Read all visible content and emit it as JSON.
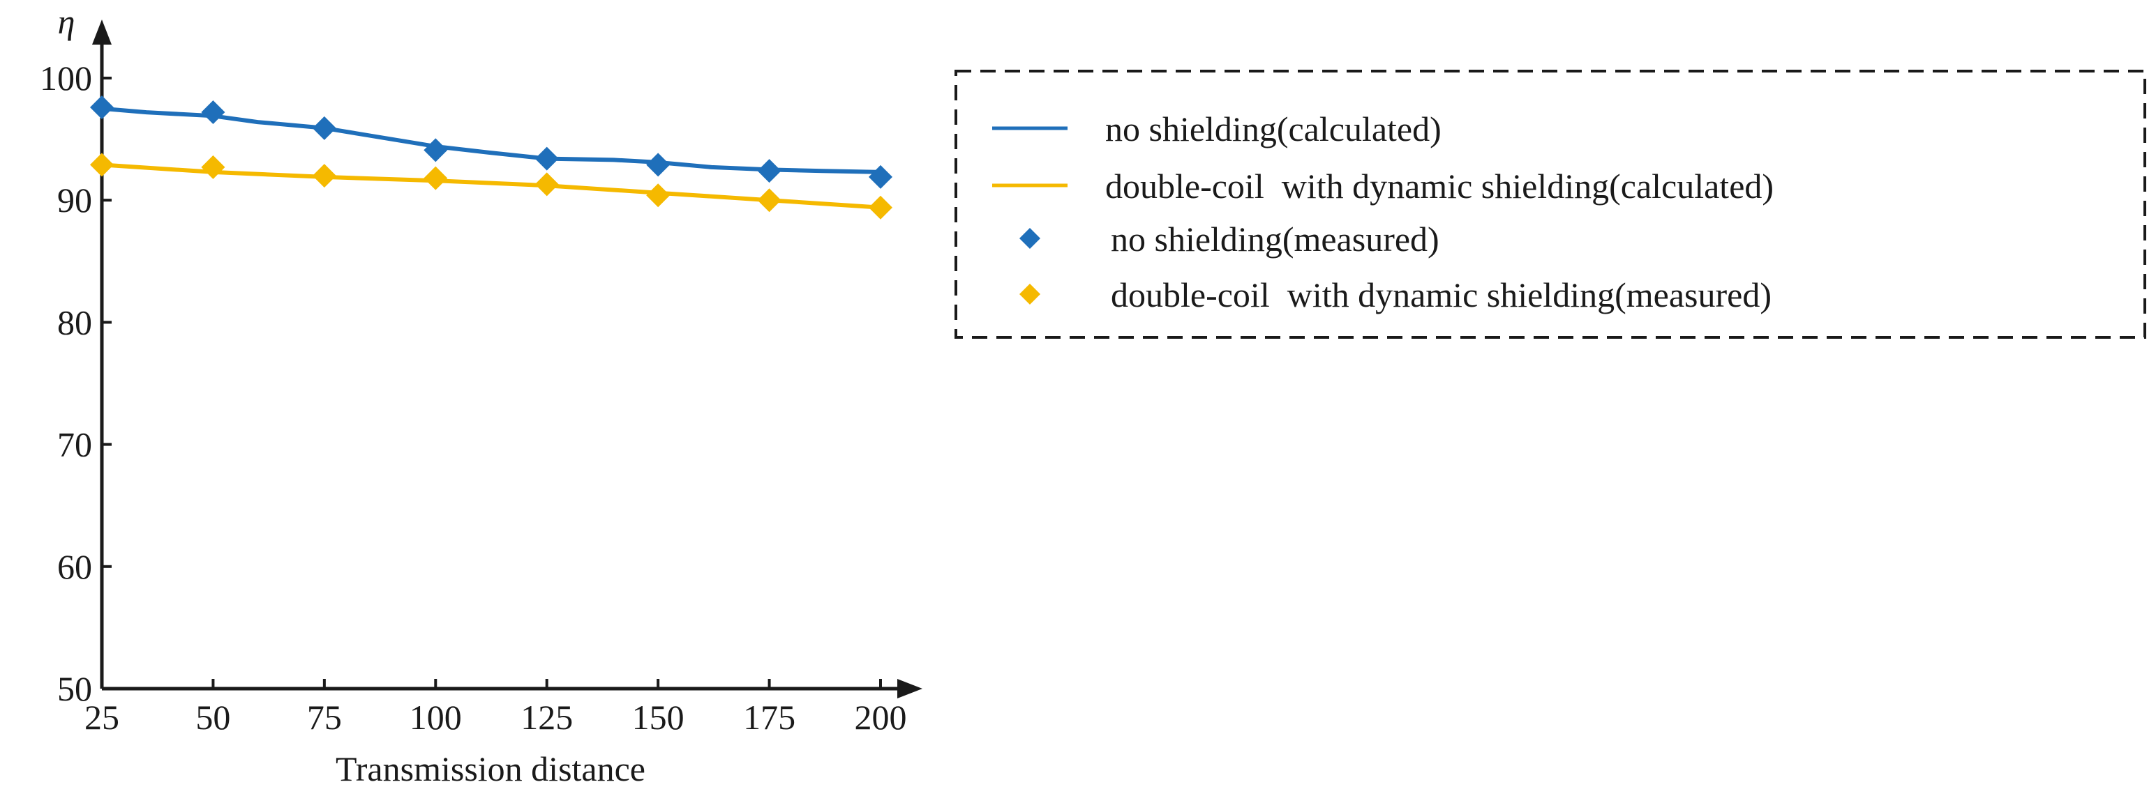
{
  "chart_data": {
    "type": "line",
    "title": "",
    "xlabel": "Transmission distance",
    "ylabel": "η",
    "x": [
      25,
      50,
      75,
      100,
      125,
      150,
      175,
      200
    ],
    "x_ticks": [
      "25",
      "50",
      "75",
      "100",
      "125",
      "150",
      "175",
      "200"
    ],
    "y_ticks": [
      "50",
      "60",
      "70",
      "80",
      "90",
      "100"
    ],
    "xlim": [
      25,
      200
    ],
    "ylim": [
      50,
      100
    ],
    "grid": false,
    "legend_position": "right",
    "series": [
      {
        "name": "no shielding(calculated)",
        "kind": "line",
        "color": "#1f6fba",
        "x": [
          25,
          35,
          50,
          60,
          75,
          85,
          100,
          112,
          125,
          140,
          150,
          162,
          175,
          187,
          200
        ],
        "values": [
          97.5,
          97.2,
          96.9,
          96.4,
          95.9,
          95.3,
          94.4,
          93.9,
          93.4,
          93.3,
          93.1,
          92.7,
          92.5,
          92.4,
          92.3
        ]
      },
      {
        "name": "double-coil  with dynamic shielding(calculated)",
        "kind": "line",
        "color": "#f5b900",
        "x": [
          25,
          50,
          75,
          100,
          125,
          150,
          175,
          200
        ],
        "values": [
          92.9,
          92.3,
          91.9,
          91.6,
          91.2,
          90.6,
          90.0,
          89.4
        ]
      },
      {
        "name": "no shielding(measured)",
        "kind": "marker",
        "color": "#1f6fba",
        "x": [
          25,
          50,
          75,
          100,
          125,
          150,
          175,
          200
        ],
        "values": [
          97.6,
          97.2,
          95.9,
          94.1,
          93.4,
          92.9,
          92.4,
          91.9
        ]
      },
      {
        "name": "double-coil  with dynamic shielding(measured)",
        "kind": "marker",
        "color": "#f5b900",
        "x": [
          25,
          50,
          75,
          100,
          125,
          150,
          175,
          200
        ],
        "values": [
          92.9,
          92.7,
          92.0,
          91.8,
          91.3,
          90.4,
          90.0,
          89.4
        ]
      }
    ]
  }
}
